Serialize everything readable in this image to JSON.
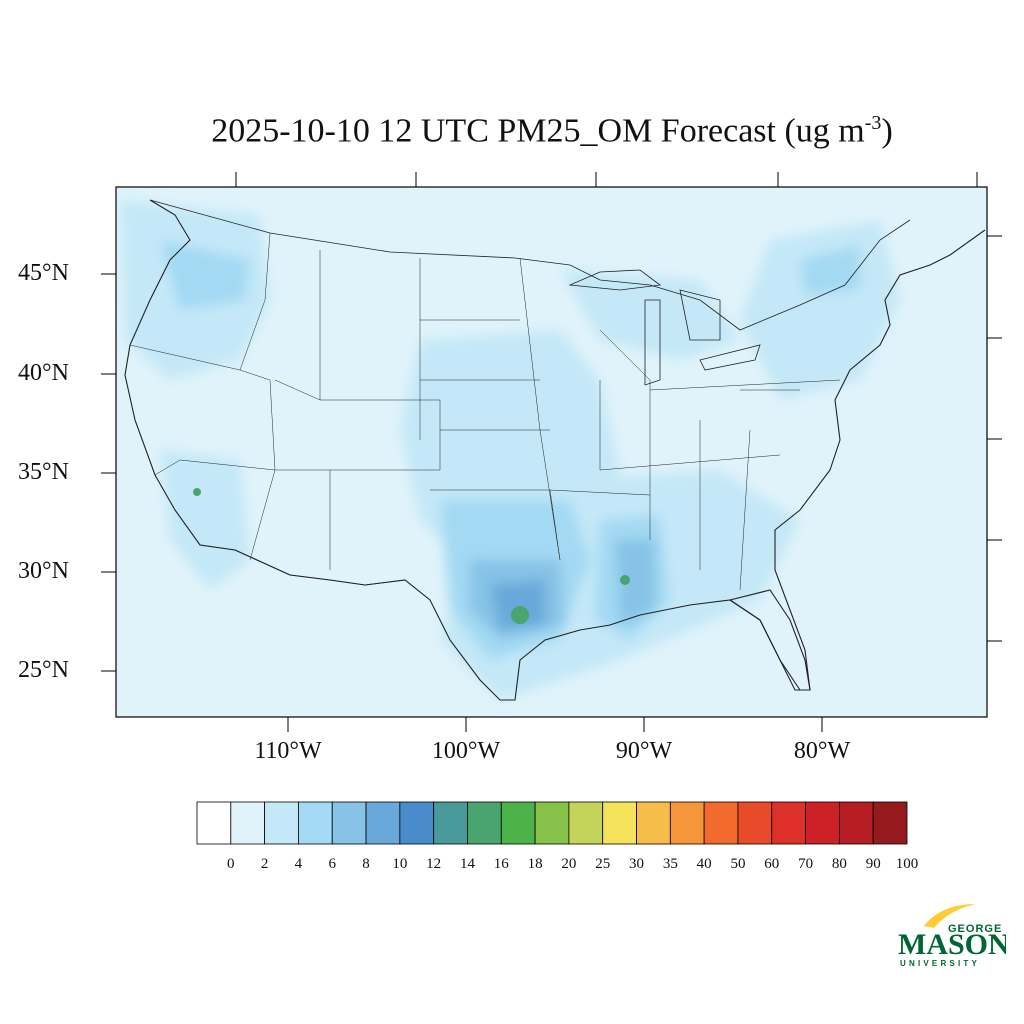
{
  "title": {
    "main": "2025-10-10 12 UTC PM25_OM Forecast (ug m",
    "exponent": "-3",
    "close": ")"
  },
  "lat_labels": [
    "45°N",
    "40°N",
    "35°N",
    "30°N",
    "25°N"
  ],
  "lon_labels": [
    "110°W",
    "100°W",
    "90°W",
    "80°W"
  ],
  "colorbar": {
    "labels": [
      "0",
      "2",
      "4",
      "6",
      "8",
      "10",
      "12",
      "14",
      "16",
      "18",
      "20",
      "25",
      "30",
      "35",
      "40",
      "50",
      "60",
      "70",
      "80",
      "90",
      "100"
    ],
    "colors": [
      "#ffffff",
      "#e0f3fb",
      "#c4e8f7",
      "#a3d9f3",
      "#86c3e6",
      "#69a8da",
      "#4a8bcb",
      "#489a9b",
      "#49a46e",
      "#4cb24a",
      "#86c24a",
      "#c4d45a",
      "#f5e45a",
      "#f7bd4a",
      "#f6963a",
      "#f26a2c",
      "#e84a2a",
      "#dc3028",
      "#cd2128",
      "#b51c23",
      "#951a1e"
    ]
  },
  "map": {
    "background_color": "#e0f3fb",
    "moderate_color": "#c4e8f7",
    "elevated_color": "#a3d9f3",
    "high_color": "#86c3e6",
    "very_high_color": "#69a8da",
    "peak_color": "#49a46e"
  },
  "logo": {
    "line1": "GEORGE",
    "line2": "MASON",
    "line3": "UNIVERSITY",
    "green": "#006633",
    "gold": "#ffcc33"
  }
}
